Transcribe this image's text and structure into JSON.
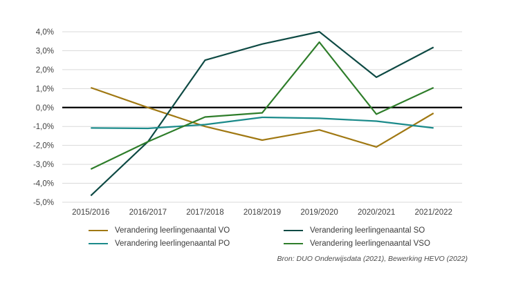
{
  "chart_data": {
    "type": "line",
    "categories": [
      "2015/2016",
      "2016/2017",
      "2017/2018",
      "2018/2019",
      "2019/2020",
      "2020/2021",
      "2021/2022"
    ],
    "ylim": [
      -5.0,
      4.0
    ],
    "yticks": [
      4.0,
      3.0,
      2.0,
      1.0,
      0.0,
      -1.0,
      -2.0,
      -3.0,
      -4.0,
      -5.0
    ],
    "ytick_labels": [
      "4,0%",
      "3,0%",
      "2,0%",
      "1,0%",
      "0,0%",
      "-1,0%",
      "-2,0%",
      "-3,0%",
      "-4,0%",
      "-5,0%"
    ],
    "grid": true,
    "zero_line": true,
    "legend_position": "bottom",
    "series": [
      {
        "name": "Verandering leerlingenaantal VO",
        "color": "#A07812",
        "values": [
          1.05,
          0.0,
          -1.0,
          -1.72,
          -1.18,
          -2.08,
          -0.3
        ]
      },
      {
        "name": "Verandering leerlingenaantal SO",
        "color": "#0E4A44",
        "values": [
          -4.65,
          -1.8,
          2.5,
          3.35,
          4.0,
          1.6,
          3.18
        ]
      },
      {
        "name": "Verandering leerlingenaantal PO",
        "color": "#1A8A8A",
        "values": [
          -1.08,
          -1.1,
          -0.9,
          -0.52,
          -0.57,
          -0.72,
          -1.08
        ]
      },
      {
        "name": "Verandering leerlingenaantal VSO",
        "color": "#2E7D2A",
        "values": [
          -3.25,
          -1.8,
          -0.5,
          -0.28,
          3.45,
          -0.35,
          1.05
        ]
      }
    ],
    "source": "Bron: DUO Onderwijsdata (2021), Bewerking HEVO (2022)"
  }
}
